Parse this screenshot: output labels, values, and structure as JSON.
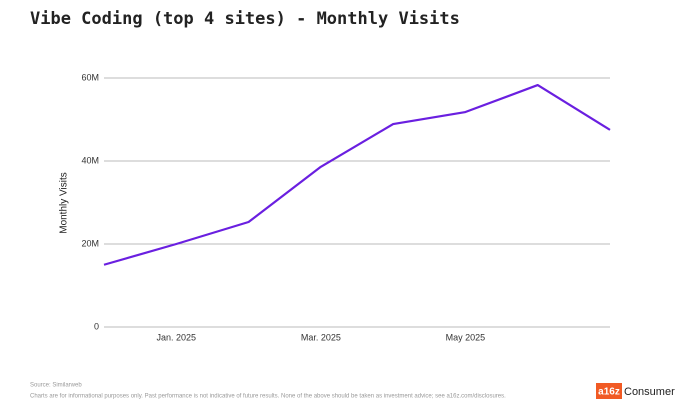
{
  "chart_data": {
    "type": "line",
    "title": "Vibe Coding (top 4 sites) - Monthly Visits",
    "y_label": "Monthly Visits",
    "categories": [
      null,
      "Jan. 2025",
      null,
      "Mar. 2025",
      null,
      "May 2025",
      null,
      null
    ],
    "values": [
      15000000,
      20000000,
      25300000,
      38600000,
      48900000,
      51800000,
      58300000,
      47500000
    ],
    "color": "#6a1fe0",
    "ylim": [
      0,
      60000000
    ],
    "yticks": [
      0,
      {
        "value": 20000000,
        "label": "20M"
      },
      {
        "value": 40000000,
        "label": "40M"
      },
      {
        "value": 60000000,
        "label": "60M"
      }
    ],
    "grid": true,
    "source": "Source: Similarweb",
    "note": "Charts are for informational purposes only. Past performance is not indicative of future results. None of the above should be taken as investment advice; see a16z.com/disclosures.",
    "brand": "a16z",
    "brand_suffix": "Consumer"
  }
}
